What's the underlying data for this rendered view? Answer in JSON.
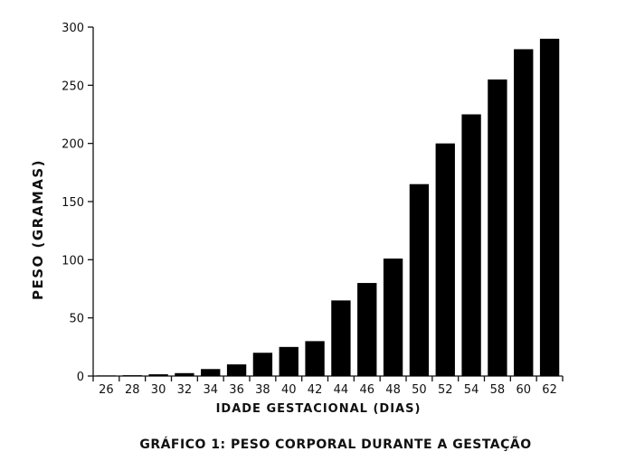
{
  "chart_data": {
    "type": "bar",
    "title": "GRÁFICO 1: PESO CORPORAL DURANTE A GESTAÇÃO",
    "xlabel": "IDADE GESTACIONAL (DIAS)",
    "ylabel": "PESO (GRAMAS)",
    "categories": [
      "26",
      "28",
      "30",
      "32",
      "34",
      "36",
      "38",
      "40",
      "42",
      "44",
      "46",
      "48",
      "50",
      "52",
      "54",
      "58",
      "60",
      "62"
    ],
    "values": [
      0.5,
      0.7,
      1.5,
      2.5,
      6,
      10,
      20,
      25,
      30,
      65,
      80,
      101,
      165,
      200,
      225,
      255,
      281,
      290
    ],
    "ylim": [
      0,
      300
    ],
    "yticks": [
      0,
      50,
      100,
      150,
      200,
      250,
      300
    ],
    "grid": false,
    "bar_color": "#000000"
  }
}
